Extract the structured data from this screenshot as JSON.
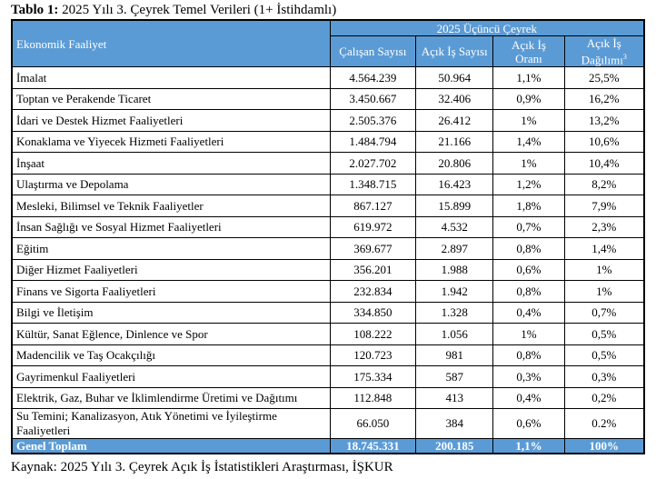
{
  "title": {
    "bold": "Tablo 1:",
    "text": "2025 Yılı 3. Çeyrek Temel Verileri (1+ İstihdamlı)"
  },
  "header": {
    "activity": "Ekonomik Faaliyet",
    "period": "2025 Üçüncü Çeyrek",
    "cols": [
      "Çalışan Sayısı",
      "Açık İş Sayısı",
      "Açık İş Oranı",
      "Açık İş Dağılımı"
    ],
    "footnote": "3"
  },
  "rows": [
    {
      "name": "İmalat",
      "employees": "4.564.239",
      "vacancies": "50.964",
      "rate": "1,1%",
      "share": "25,5%"
    },
    {
      "name": "Toptan ve Perakende Ticaret",
      "employees": "3.450.667",
      "vacancies": "32.406",
      "rate": "0,9%",
      "share": "16,2%"
    },
    {
      "name": "İdari ve Destek Hizmet Faaliyetleri",
      "employees": "2.505.376",
      "vacancies": "26.412",
      "rate": "1%",
      "share": "13,2%"
    },
    {
      "name": "Konaklama ve Yiyecek Hizmeti Faaliyetleri",
      "employees": "1.484.794",
      "vacancies": "21.166",
      "rate": "1,4%",
      "share": "10,6%"
    },
    {
      "name": "İnşaat",
      "employees": "2.027.702",
      "vacancies": "20.806",
      "rate": "1%",
      "share": "10,4%"
    },
    {
      "name": "Ulaştırma ve Depolama",
      "employees": "1.348.715",
      "vacancies": "16.423",
      "rate": "1,2%",
      "share": "8,2%"
    },
    {
      "name": "Mesleki, Bilimsel ve Teknik Faaliyetler",
      "employees": "867.127",
      "vacancies": "15.899",
      "rate": "1,8%",
      "share": "7,9%"
    },
    {
      "name": "İnsan Sağlığı ve Sosyal Hizmet Faaliyetleri",
      "employees": "619.972",
      "vacancies": "4.532",
      "rate": "0,7%",
      "share": "2,3%"
    },
    {
      "name": "Eğitim",
      "employees": "369.677",
      "vacancies": "2.897",
      "rate": "0,8%",
      "share": "1,4%"
    },
    {
      "name": "Diğer Hizmet Faaliyetleri",
      "employees": "356.201",
      "vacancies": "1.988",
      "rate": "0,6%",
      "share": "1%"
    },
    {
      "name": "Finans ve Sigorta Faaliyetleri",
      "employees": "232.834",
      "vacancies": "1.942",
      "rate": "0,8%",
      "share": "1%"
    },
    {
      "name": "Bilgi ve İletişim",
      "employees": "334.850",
      "vacancies": "1.328",
      "rate": "0,4%",
      "share": "0,7%"
    },
    {
      "name": "Kültür, Sanat Eğlence, Dinlence ve Spor",
      "employees": "108.222",
      "vacancies": "1.056",
      "rate": "1%",
      "share": "0,5%"
    },
    {
      "name": "Madencilik ve Taş Ocakçılığı",
      "employees": "120.723",
      "vacancies": "981",
      "rate": "0,8%",
      "share": "0,5%"
    },
    {
      "name": "Gayrimenkul Faaliyetleri",
      "employees": "175.334",
      "vacancies": "587",
      "rate": "0,3%",
      "share": "0,3%"
    },
    {
      "name": "Elektrik, Gaz, Buhar ve İklimlendirme Üretimi ve Dağıtımı",
      "employees": "112.848",
      "vacancies": "413",
      "rate": "0,4%",
      "share": "0,2%"
    },
    {
      "name": "Su Temini; Kanalizasyon, Atık Yönetimi ve İyileştirme Faaliyetleri",
      "employees": "66.050",
      "vacancies": "384",
      "rate": "0,6%",
      "share": "0.2%"
    }
  ],
  "total": {
    "name": "Genel Toplam",
    "employees": "18.745.331",
    "vacancies": "200.185",
    "rate": "1,1%",
    "share": "100%"
  },
  "source": "Kaynak: 2025 Yılı 3. Çeyrek Açık İş İstatistikleri Araştırması, İŞKUR"
}
